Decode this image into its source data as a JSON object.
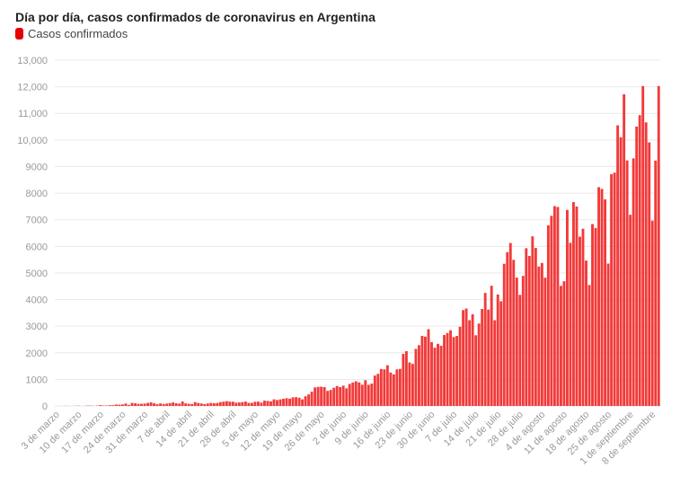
{
  "title": "Día por día, casos confirmados de coronavirus en Argentina",
  "legend_label": "Casos confirmados",
  "colors": {
    "bar": "#f23a3a",
    "grid": "#e9e9e9",
    "axis_text": "#999999",
    "legend": "#e60000"
  },
  "chart_data": {
    "type": "bar",
    "title": "Día por día, casos confirmados de coronavirus en Argentina",
    "series": [
      {
        "name": "Casos confirmados"
      }
    ],
    "ylim": [
      0,
      13000
    ],
    "y_ticks": [
      "0",
      "1000",
      "2000",
      "3000",
      "4000",
      "5000",
      "6000",
      "7000",
      "8000",
      "9000",
      "10,000",
      "11,000",
      "12,000",
      "13,000"
    ],
    "x_tick_labels": [
      "3 de marzo",
      "10 de marzo",
      "17 de marzo",
      "24 de marzo",
      "31 de marzo",
      "7 de abril",
      "14 de abril",
      "21 de abril",
      "28 de abril",
      "5 de mayo",
      "12 de mayo",
      "19 de mayo",
      "26 de mayo",
      "2 de junio",
      "9 de junio",
      "16 de junio",
      "23 de junio",
      "30 de junio",
      "7 de julio",
      "14 de julio",
      "21 de julio",
      "28 de julio",
      "4 de agosto",
      "11 de agosto",
      "18 de agosto",
      "25 de agosto",
      "1 de septiembre",
      "8 de septiembre"
    ],
    "grid": true,
    "legend": "top-left",
    "values": [
      1,
      0,
      0,
      5,
      1,
      2,
      3,
      9,
      0,
      3,
      12,
      11,
      3,
      11,
      31,
      13,
      18,
      28,
      30,
      53,
      49,
      57,
      90,
      38,
      115,
      100,
      79,
      82,
      89,
      114,
      134,
      102,
      67,
      95,
      73,
      87,
      108,
      132,
      102,
      88,
      168,
      98,
      79,
      74,
      143,
      112,
      93,
      70,
      93,
      114,
      104,
      112,
      144,
      161,
      180,
      163,
      161,
      124,
      132,
      145,
      166,
      114,
      116,
      158,
      163,
      124,
      200,
      188,
      174,
      250,
      223,
      246,
      270,
      292,
      275,
      325,
      330,
      310,
      247,
      364,
      434,
      535,
      697,
      718,
      723,
      709,
      567,
      601,
      683,
      751,
      710,
      764,
      663,
      829,
      881,
      929,
      886,
      798,
      970,
      795,
      840,
      1144,
      1208,
      1388,
      1375,
      1531,
      1258,
      1187,
      1374,
      1393,
      1958,
      2060,
      1634,
      1581,
      2146,
      2285,
      2635,
      2606,
      2886,
      2401,
      2189,
      2335,
      2262,
      2667,
      2744,
      2845,
      2590,
      2632,
      2979,
      3604,
      3663,
      3223,
      3449,
      2657,
      3099,
      3645,
      4250,
      3624,
      4518,
      3223,
      4190,
      3937,
      5344,
      5782,
      6127,
      5493,
      4824,
      4176,
      4890,
      5929,
      5641,
      6377,
      5939,
      5241,
      5376,
      4824,
      6792,
      7147,
      7513,
      7482,
      4514,
      4688,
      7369,
      6134,
      7663,
      7498,
      6365,
      6663,
      5465,
      4547,
      6840,
      6693,
      8225,
      8159,
      7767,
      5352,
      8713,
      8771,
      10550,
      10104,
      11717,
      9230,
      7187,
      9309,
      10504,
      10933,
      12026,
      10661,
      9908,
      6965,
      9224,
      12027
    ]
  }
}
